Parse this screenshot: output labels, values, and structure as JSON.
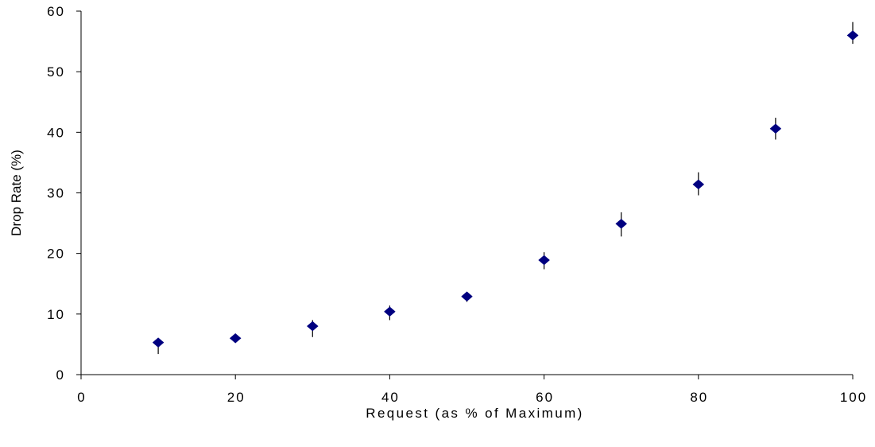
{
  "chart_data": {
    "type": "scatter",
    "title": "",
    "xlabel": "Request (as % of Maximum)",
    "ylabel": "Drop Rate (%)",
    "xlim": [
      0,
      100
    ],
    "ylim": [
      0,
      60
    ],
    "x_ticks": [
      0,
      20,
      40,
      60,
      80,
      100
    ],
    "y_ticks": [
      0,
      10,
      20,
      30,
      40,
      50,
      60
    ],
    "grid": false,
    "legend": "none",
    "marker": "diamond",
    "colors": {
      "marker": "#000080",
      "error_bar": "#000000",
      "axis": "#000000"
    },
    "series": [
      {
        "x": [
          10,
          20,
          30,
          40,
          50,
          60,
          70,
          80,
          90,
          100
        ],
        "y": [
          5.3,
          6.0,
          8.0,
          10.4,
          12.9,
          18.9,
          24.9,
          31.4,
          40.6,
          56.0
        ],
        "error_low": [
          3.4,
          5.6,
          6.2,
          9.0,
          12.0,
          17.4,
          22.8,
          29.6,
          38.8,
          54.6
        ],
        "error_high": [
          6.0,
          6.5,
          9.0,
          11.4,
          13.6,
          20.2,
          26.8,
          33.4,
          42.4,
          58.2
        ]
      }
    ]
  }
}
